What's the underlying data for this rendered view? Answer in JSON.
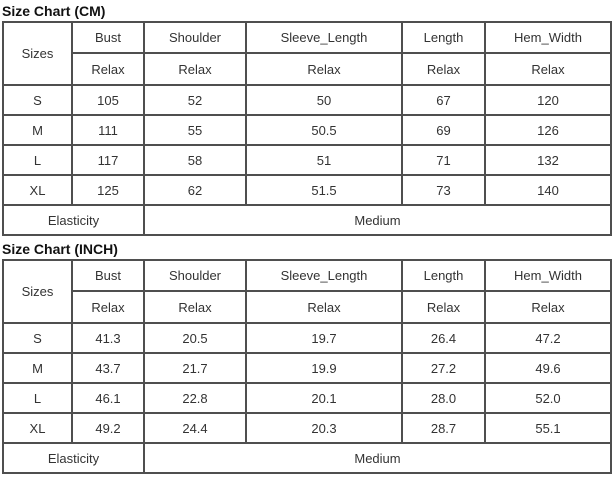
{
  "page": {
    "background": "#ffffff",
    "border_color": "#4f4f4f",
    "cell_text_color": "#333333",
    "title_text_color": "#111111"
  },
  "tables": [
    {
      "id": "cm",
      "title": "Size Chart (CM)",
      "corner_header": "Sizes",
      "columns": [
        "Bust",
        "Shoulder",
        "Sleeve_Length",
        "Length",
        "Hem_Width"
      ],
      "sub_headers": [
        "Relax",
        "Relax",
        "Relax",
        "Relax",
        "Relax"
      ],
      "rows": [
        {
          "size": "S",
          "values": [
            "105",
            "52",
            "50",
            "67",
            "120"
          ]
        },
        {
          "size": "M",
          "values": [
            "111",
            "55",
            "50.5",
            "69",
            "126"
          ]
        },
        {
          "size": "L",
          "values": [
            "117",
            "58",
            "51",
            "71",
            "132"
          ]
        },
        {
          "size": "XL",
          "values": [
            "125",
            "62",
            "51.5",
            "73",
            "140"
          ]
        }
      ],
      "footer": {
        "label": "Elasticity",
        "value": "Medium"
      }
    },
    {
      "id": "inch",
      "title": "Size Chart (INCH)",
      "corner_header": "Sizes",
      "columns": [
        "Bust",
        "Shoulder",
        "Sleeve_Length",
        "Length",
        "Hem_Width"
      ],
      "sub_headers": [
        "Relax",
        "Relax",
        "Relax",
        "Relax",
        "Relax"
      ],
      "rows": [
        {
          "size": "S",
          "values": [
            "41.3",
            "20.5",
            "19.7",
            "26.4",
            "47.2"
          ]
        },
        {
          "size": "M",
          "values": [
            "43.7",
            "21.7",
            "19.9",
            "27.2",
            "49.6"
          ]
        },
        {
          "size": "L",
          "values": [
            "46.1",
            "22.8",
            "20.1",
            "28.0",
            "52.0"
          ]
        },
        {
          "size": "XL",
          "values": [
            "49.2",
            "24.4",
            "20.3",
            "28.7",
            "55.1"
          ]
        }
      ],
      "footer": {
        "label": "Elasticity",
        "value": "Medium"
      }
    }
  ]
}
